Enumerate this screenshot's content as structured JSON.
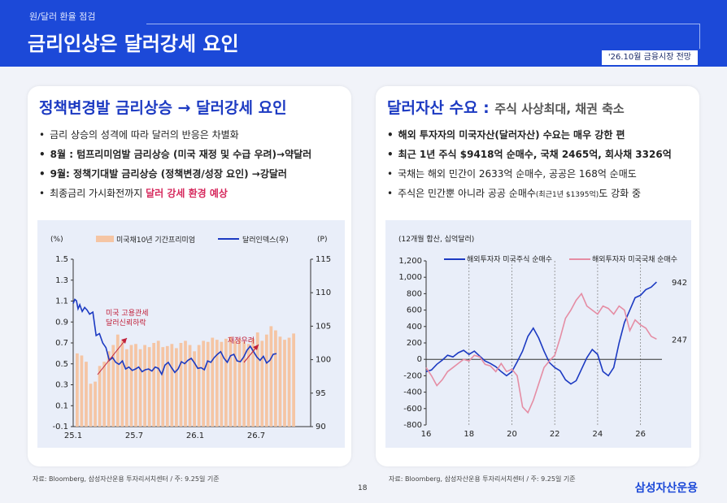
{
  "header": {
    "kicker": "원/달러 환율 점검",
    "title": "금리인상은 달러강세 요인",
    "badge": "'26.10월 금융시장 전망"
  },
  "left_panel": {
    "heading": "정책변경발 금리상승 → 달러강세 요인",
    "bullets": [
      {
        "text": "금리 상승의 성격에 따라 달러의 반응은 차별화",
        "bold": false
      },
      {
        "text": "8월 : 텀프리미엄발 금리상승 (미국 재정 및 수급 우려)→약달러",
        "bold": true
      },
      {
        "text": "9월: 정책기대발 금리상승 (정책변경/성장 요인) →강달러",
        "bold": true
      }
    ],
    "bullet4_prefix": "최종금리 가시화전까지 ",
    "bullet4_highlight": "달러 강세 환경 예상",
    "source": "자료: Bloomberg, 삼성자산운용 투자리서치센터 / 주: 9.25일 기준"
  },
  "right_panel": {
    "heading": "달러자산 수요 : ",
    "heading_sub": "주식 사상최대, 채권 축소",
    "bullets": [
      "해외 투자자의 미국자산(달러자산) 수요는 매우 강한 편",
      "최근 1년 주식 $9418억 순매수, 국채 2465억, 회사채 3326억",
      "국채는 해외 민간이 2633억 순매수, 공공은 168억 순매도"
    ],
    "bullet4_main": "주식은 민간뿐 아니라 공공 순매수",
    "bullet4_small": "(최근1년 $1395억)",
    "bullet4_end": "도 강화 중",
    "source": "자료: Bloomberg, 삼성자산운용 투자리서치센터 / 주: 9.25일 기준"
  },
  "page_number": "18",
  "brand": "삼성자산운용",
  "chart_data": [
    {
      "type": "bar",
      "left_unit": "(%)",
      "right_unit": "(P)",
      "legend": [
        "미국채10년 기간프리미엄",
        "달러인덱스(우)"
      ],
      "legend_position": "top",
      "x_ticks": [
        "25.1",
        "25.7",
        "26.1",
        "26.7"
      ],
      "y_left_ticks": [
        "1.5",
        "1.3",
        "1.1",
        "0.9",
        "0.7",
        "0.5",
        "0.3",
        "0.1",
        "-0.1"
      ],
      "y_right_ticks": [
        "115",
        "110",
        "105",
        "100",
        "95",
        "90"
      ],
      "ylim_left": [
        -0.1,
        1.5
      ],
      "ylim_right": [
        90,
        115
      ],
      "annotations": [
        "미국 고용관세\n달러신뢰하락",
        "재정우려"
      ],
      "series": [
        {
          "name": "미국채10년 기간프리미엄",
          "kind": "bar",
          "axis": "left",
          "color": "#f5c5a4",
          "values": [
            0.6,
            0.58,
            0.52,
            0.31,
            0.33,
            0.48,
            0.52,
            0.62,
            0.68,
            0.78,
            0.72,
            0.64,
            0.68,
            0.69,
            0.64,
            0.68,
            0.66,
            0.7,
            0.72,
            0.66,
            0.67,
            0.69,
            0.65,
            0.7,
            0.72,
            0.68,
            0.62,
            0.68,
            0.72,
            0.71,
            0.75,
            0.73,
            0.71,
            0.74,
            0.76,
            0.72,
            0.74,
            0.71,
            0.69,
            0.74,
            0.8,
            0.72,
            0.78,
            0.86,
            0.82,
            0.76,
            0.73,
            0.75,
            0.79
          ]
        },
        {
          "name": "달러인덱스(우)",
          "kind": "line",
          "axis": "right",
          "color": "#1c3ac2",
          "x": [
            0,
            2,
            4,
            6,
            8,
            11,
            14,
            17,
            20,
            24,
            28,
            32,
            36,
            40,
            44,
            48,
            52,
            56,
            60,
            64,
            68,
            72,
            76,
            80,
            84,
            88,
            92,
            96,
            100,
            104,
            108,
            112,
            116,
            120,
            124,
            128,
            132,
            136,
            140,
            144,
            148,
            152,
            156,
            160,
            164,
            168,
            172,
            176,
            180,
            184,
            188,
            192,
            196,
            200,
            204,
            208,
            212,
            216,
            220,
            224,
            228,
            232,
            236,
            240,
            244,
            248
          ],
          "values": [
            108.4,
            109,
            108.8,
            107.6,
            108.2,
            107.2,
            107.8,
            107.4,
            106.8,
            107.1,
            103.6,
            103.9,
            102.5,
            101.8,
            99.9,
            100.3,
            99.6,
            99.3,
            99.8,
            98.6,
            98.9,
            98.4,
            98.6,
            98.9,
            98.2,
            98.5,
            98.6,
            98.3,
            98.9,
            98.7,
            97.8,
            99.2,
            99.6,
            98.8,
            98.1,
            98.6,
            99.7,
            99.4,
            99.9,
            100.2,
            99.5,
            98.7,
            98.8,
            98.5,
            99.8,
            99.6,
            100.3,
            100.8,
            101.2,
            100.2,
            99.6,
            100.6,
            100.8,
            99.8,
            99.7,
            100.4,
            101.4,
            102,
            101.2,
            100.4,
            99.9,
            100.5,
            99.5,
            99.9,
            100.8,
            100.9
          ]
        }
      ]
    },
    {
      "type": "line",
      "unit_label": "(12개월 합산, 십억달러)",
      "legend": [
        "해외투자자 미국주식 순매수",
        "해외투자자 미국국채 순매수"
      ],
      "legend_position": "top",
      "x_ticks": [
        "16",
        "18",
        "20",
        "22",
        "24",
        "26"
      ],
      "y_ticks": [
        "1,200",
        "1,000",
        "800",
        "600",
        "400",
        "200",
        "0",
        "-200",
        "-400",
        "-600",
        "-800"
      ],
      "ylim": [
        -800,
        1200
      ],
      "xlim": [
        16,
        27
      ],
      "end_labels": [
        "942",
        "247"
      ],
      "series": [
        {
          "name": "해외투자자 미국주식 순매수",
          "color": "#1c3ac2",
          "x": [
            16,
            16.25,
            16.5,
            16.75,
            17,
            17.25,
            17.5,
            17.75,
            18,
            18.25,
            18.5,
            18.75,
            19,
            19.25,
            19.5,
            19.75,
            20,
            20.25,
            20.5,
            20.75,
            21,
            21.25,
            21.5,
            21.75,
            22,
            22.25,
            22.5,
            22.75,
            23,
            23.25,
            23.5,
            23.75,
            24,
            24.25,
            24.5,
            24.75,
            25,
            25.25,
            25.5,
            25.75,
            26,
            26.25,
            26.5,
            26.75
          ],
          "values": [
            -150,
            -130,
            -60,
            -10,
            50,
            30,
            80,
            110,
            60,
            100,
            40,
            -20,
            -50,
            -90,
            -150,
            -200,
            -150,
            -30,
            100,
            280,
            380,
            260,
            100,
            -40,
            -100,
            -140,
            -250,
            -300,
            -260,
            -120,
            20,
            120,
            60,
            -150,
            -200,
            -100,
            200,
            450,
            600,
            750,
            780,
            850,
            880,
            942
          ]
        },
        {
          "name": "해외투자자 미국국채 순매수",
          "color": "#e58da4",
          "x": [
            16,
            16.25,
            16.5,
            16.75,
            17,
            17.25,
            17.5,
            17.75,
            18,
            18.25,
            18.5,
            18.75,
            19,
            19.25,
            19.5,
            19.75,
            20,
            20.25,
            20.5,
            20.75,
            21,
            21.25,
            21.5,
            21.75,
            22,
            22.25,
            22.5,
            22.75,
            23,
            23.25,
            23.5,
            23.75,
            24,
            24.25,
            24.5,
            24.75,
            25,
            25.25,
            25.5,
            25.75,
            26,
            26.25,
            26.5,
            26.75
          ],
          "values": [
            -100,
            -200,
            -320,
            -250,
            -150,
            -100,
            -50,
            0,
            -20,
            50,
            30,
            -60,
            -80,
            -150,
            -50,
            -150,
            -120,
            -200,
            -580,
            -650,
            -500,
            -300,
            -100,
            -20,
            50,
            260,
            500,
            600,
            720,
            800,
            650,
            600,
            550,
            650,
            620,
            550,
            650,
            600,
            350,
            480,
            420,
            380,
            280,
            247
          ]
        }
      ]
    }
  ]
}
